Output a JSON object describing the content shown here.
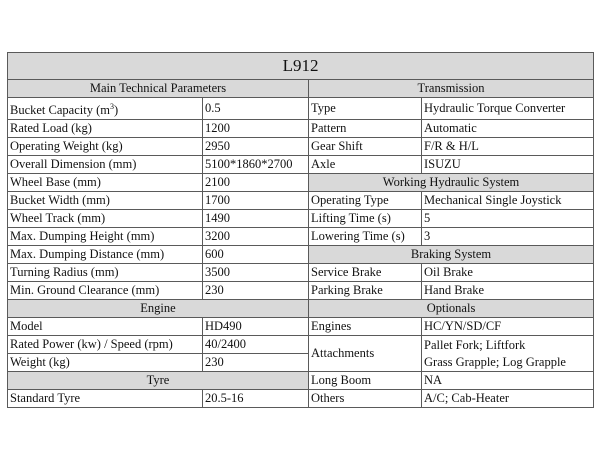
{
  "title": "L912",
  "sections": {
    "main": "Main Technical Parameters",
    "transmission": "Transmission",
    "working_hydraulic": "Working Hydraulic System",
    "braking": "Braking System",
    "engine": "Engine",
    "optionals": "Optionals",
    "tyre": "Tyre"
  },
  "main_params": [
    {
      "label": "Bucket Capacity (m",
      "sup": "3",
      "label_end": ")",
      "value": "0.5"
    },
    {
      "label": "Rated Load (kg)",
      "value": "1200"
    },
    {
      "label": "Operating Weight (kg)",
      "value": "2950"
    },
    {
      "label": "Overall Dimension (mm)",
      "value": "5100*1860*2700"
    },
    {
      "label": "Wheel Base (mm)",
      "value": "2100"
    },
    {
      "label": "Bucket Width (mm)",
      "value": "1700"
    },
    {
      "label": "Wheel Track (mm)",
      "value": "1490"
    },
    {
      "label": "Max. Dumping Height (mm)",
      "value": "3200"
    },
    {
      "label": "Max. Dumping Distance (mm)",
      "value": "600"
    },
    {
      "label": "Turning Radius (mm)",
      "value": "3500"
    },
    {
      "label": "Min. Ground Clearance (mm)",
      "value": "230"
    }
  ],
  "transmission": [
    {
      "label": "Type",
      "value": "Hydraulic Torque Converter"
    },
    {
      "label": "Pattern",
      "value": "Automatic"
    },
    {
      "label": "Gear Shift",
      "value": "F/R & H/L"
    },
    {
      "label": "Axle",
      "value": "ISUZU"
    }
  ],
  "working_hydraulic": [
    {
      "label": "Operating Type",
      "value": "Mechanical Single Joystick"
    },
    {
      "label": "Lifting Time (s)",
      "value": "5"
    },
    {
      "label": "Lowering Time (s)",
      "value": "3"
    }
  ],
  "braking": [
    {
      "label": "Service Brake",
      "value": "Oil Brake"
    },
    {
      "label": "Parking Brake",
      "value": "Hand Brake"
    }
  ],
  "engine": [
    {
      "label": "Model",
      "value": "HD490"
    },
    {
      "label": "Rated Power (kw) / Speed (rpm)",
      "value": "40/2400"
    },
    {
      "label": "Weight (kg)",
      "value": "230"
    }
  ],
  "optionals": {
    "engines": {
      "label": "Engines",
      "value": "HC/YN/SD/CF"
    },
    "attachments": {
      "label": "Attachments",
      "values": [
        "Pallet Fork; Liftfork",
        "Grass Grapple; Log Grapple"
      ]
    },
    "long_boom": {
      "label": "Long Boom",
      "value": "NA"
    },
    "others": {
      "label": "Others",
      "value": "A/C; Cab-Heater"
    }
  },
  "tyre": [
    {
      "label": "Standard Tyre",
      "value": "20.5-16"
    }
  ]
}
